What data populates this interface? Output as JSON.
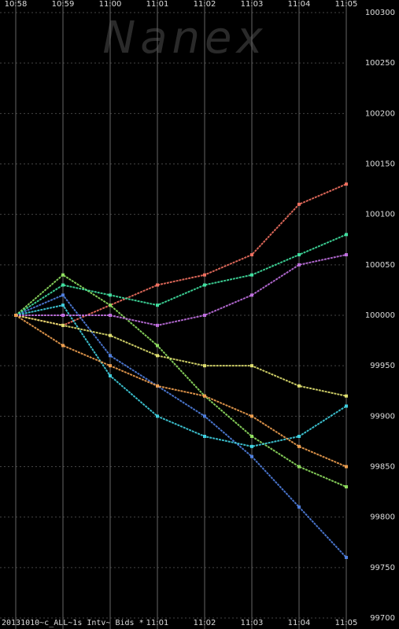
{
  "chart_data": {
    "type": "line",
    "watermark": "Nanex",
    "footer": "20131010~c_ALL~1s Intv~ Bids *",
    "categories": [
      "10:58",
      "10:59",
      "11:00",
      "11:01",
      "11:02",
      "11:03",
      "11:04",
      "11:05"
    ],
    "bottom_labels_from": 3,
    "series": [
      {
        "color": "#f07060",
        "values": [
          100000,
          99990,
          100010,
          100030,
          100040,
          100060,
          100110,
          100130
        ]
      },
      {
        "color": "#5080e0",
        "values": [
          100000,
          100020,
          99960,
          99930,
          99900,
          99860,
          99810,
          99760
        ]
      },
      {
        "color": "#90e060",
        "values": [
          100000,
          100040,
          100010,
          99970,
          99920,
          99880,
          99850,
          99830
        ]
      },
      {
        "color": "#40d0e0",
        "values": [
          100000,
          100010,
          99940,
          99900,
          99880,
          99870,
          99880,
          99910
        ]
      },
      {
        "color": "#e0e070",
        "values": [
          100000,
          99990,
          99980,
          99960,
          99950,
          99950,
          99930,
          99920
        ]
      },
      {
        "color": "#40e0a0",
        "values": [
          100000,
          100030,
          100020,
          100010,
          100030,
          100040,
          100060,
          100080
        ]
      },
      {
        "color": "#c070e0",
        "values": [
          100000,
          100000,
          100000,
          99990,
          100000,
          100020,
          100050,
          100060
        ]
      },
      {
        "color": "#f0a050",
        "values": [
          100000,
          99970,
          99950,
          99930,
          99920,
          99900,
          99870,
          99850
        ]
      }
    ],
    "ylim": [
      99700,
      100300
    ],
    "yticks": [
      99700,
      99750,
      99800,
      99850,
      99900,
      99950,
      100000,
      100050,
      100100,
      100150,
      100200,
      100250,
      100300
    ],
    "grid": true
  }
}
